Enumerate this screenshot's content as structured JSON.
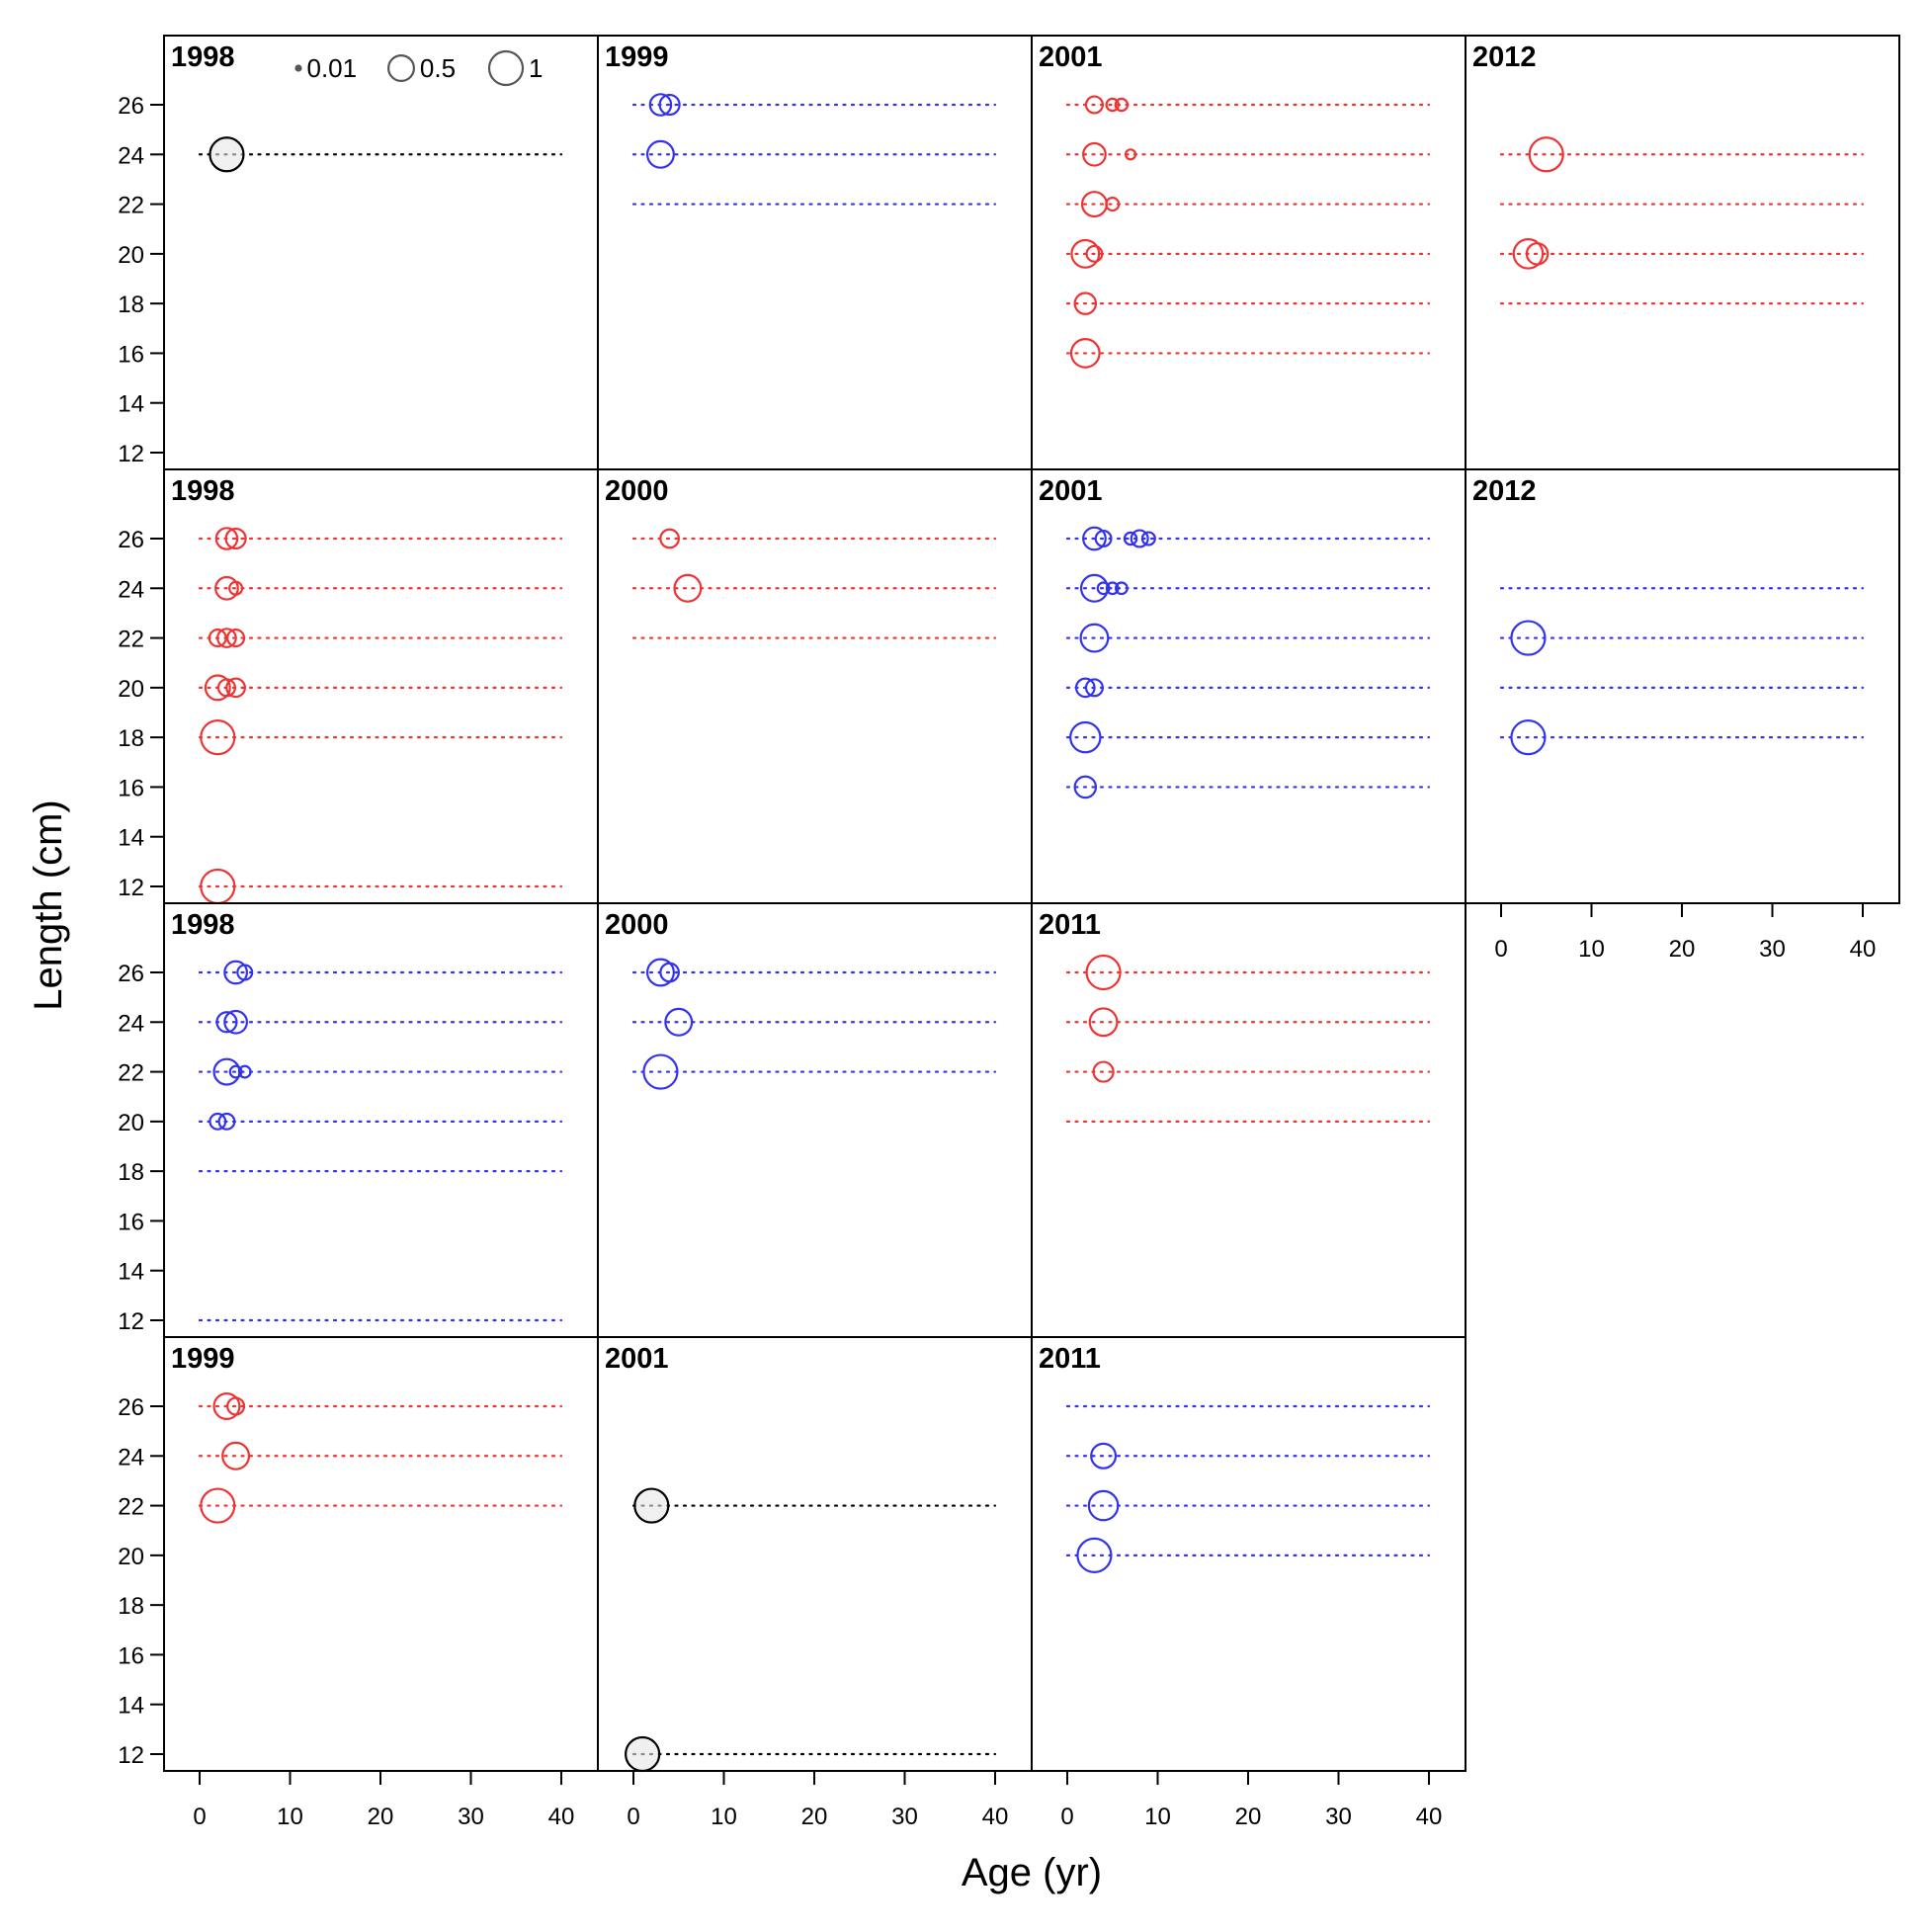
{
  "chart_data": {
    "type": "scatter",
    "subtype": "bubble-panels",
    "xlabel": "Age (yr)",
    "ylabel": "Length (cm)",
    "xlim": [
      0,
      40
    ],
    "ylim": [
      12,
      26
    ],
    "x_ticks": [
      0,
      10,
      20,
      30,
      40
    ],
    "y_ticks": [
      12,
      14,
      16,
      18,
      20,
      22,
      24,
      26
    ],
    "grid": false,
    "legend": {
      "placement": "top-left",
      "entries": [
        {
          "label": "0.01",
          "value": 0.01
        },
        {
          "label": "0.5",
          "value": 0.5
        },
        {
          "label": "1",
          "value": 1
        }
      ]
    },
    "colors": {
      "black": "#000000",
      "red": "#ee3333",
      "blue": "#3333ee",
      "black_fill": "#e6e6e6"
    },
    "panels": [
      {
        "title": "1998",
        "color": "black",
        "lines": [
          24
        ],
        "points": [
          [
            3,
            24,
            1
          ]
        ]
      },
      {
        "title": "1999",
        "color": "blue",
        "lines": [
          26,
          24,
          22
        ],
        "points": [
          [
            3,
            26,
            0.3
          ],
          [
            4,
            26,
            0.25
          ],
          [
            3,
            24,
            0.55
          ]
        ]
      },
      {
        "title": "2001",
        "color": "red",
        "lines": [
          26,
          24,
          22,
          20,
          18,
          16
        ],
        "points": [
          [
            3,
            26,
            0.15
          ],
          [
            5,
            26,
            0.05
          ],
          [
            6,
            26,
            0.05
          ],
          [
            3,
            24,
            0.35
          ],
          [
            7,
            24,
            0.02
          ],
          [
            3,
            22,
            0.45
          ],
          [
            5,
            22,
            0.06
          ],
          [
            2,
            20,
            0.6
          ],
          [
            3,
            20,
            0.12
          ],
          [
            2,
            18,
            0.3
          ],
          [
            2,
            16,
            0.65
          ]
        ]
      },
      {
        "title": "2012",
        "color": "red",
        "lines": [
          24,
          22,
          20,
          18
        ],
        "points": [
          [
            5,
            24,
            1
          ],
          [
            3,
            20,
            0.7
          ],
          [
            4,
            20,
            0.3
          ]
        ]
      },
      {
        "title": "1998",
        "color": "red",
        "lines": [
          26,
          24,
          22,
          20,
          18,
          12
        ],
        "points": [
          [
            3,
            26,
            0.3
          ],
          [
            4,
            26,
            0.25
          ],
          [
            3,
            24,
            0.35
          ],
          [
            4,
            24,
            0.06
          ],
          [
            2,
            22,
            0.15
          ],
          [
            3,
            22,
            0.2
          ],
          [
            4,
            22,
            0.15
          ],
          [
            2,
            20,
            0.45
          ],
          [
            3,
            20,
            0.15
          ],
          [
            4,
            20,
            0.2
          ],
          [
            2,
            18,
            1
          ],
          [
            2,
            12,
            1
          ]
        ]
      },
      {
        "title": "2000",
        "color": "red",
        "lines": [
          26,
          24,
          22
        ],
        "points": [
          [
            4,
            26,
            0.2
          ],
          [
            6,
            24,
            0.55
          ]
        ]
      },
      {
        "title": "2001",
        "color": "blue",
        "lines": [
          26,
          24,
          22,
          20,
          18,
          16
        ],
        "points": [
          [
            3,
            26,
            0.35
          ],
          [
            4,
            26,
            0.12
          ],
          [
            7,
            26,
            0.05
          ],
          [
            8,
            26,
            0.15
          ],
          [
            9,
            26,
            0.06
          ],
          [
            3,
            24,
            0.55
          ],
          [
            4,
            24,
            0.04
          ],
          [
            5,
            24,
            0.04
          ],
          [
            6,
            24,
            0.04
          ],
          [
            3,
            22,
            0.6
          ],
          [
            2,
            20,
            0.2
          ],
          [
            3,
            20,
            0.15
          ],
          [
            2,
            18,
            0.75
          ],
          [
            2,
            16,
            0.3
          ]
        ]
      },
      {
        "title": "2012",
        "color": "blue",
        "lines": [
          24,
          22,
          20,
          18
        ],
        "points": [
          [
            3,
            22,
            1
          ],
          [
            3,
            18,
            1
          ]
        ]
      },
      {
        "title": "1998",
        "color": "blue",
        "lines": [
          26,
          24,
          22,
          20,
          18,
          12
        ],
        "points": [
          [
            4,
            26,
            0.35
          ],
          [
            5,
            26,
            0.1
          ],
          [
            3,
            24,
            0.25
          ],
          [
            4,
            24,
            0.35
          ],
          [
            3,
            22,
            0.5
          ],
          [
            4,
            22,
            0.04
          ],
          [
            5,
            22,
            0.04
          ],
          [
            2,
            20,
            0.12
          ],
          [
            3,
            20,
            0.12
          ]
        ]
      },
      {
        "title": "2000",
        "color": "blue",
        "lines": [
          26,
          24,
          22
        ],
        "points": [
          [
            3,
            26,
            0.55
          ],
          [
            4,
            26,
            0.2
          ],
          [
            5,
            24,
            0.55
          ],
          [
            3,
            22,
            1
          ]
        ]
      },
      {
        "title": "2011",
        "color": "red",
        "lines": [
          26,
          24,
          22,
          20
        ],
        "points": [
          [
            4,
            26,
            1
          ],
          [
            4,
            24,
            0.6
          ],
          [
            4,
            22,
            0.25
          ]
        ]
      },
      {
        "title": "1999",
        "color": "red",
        "lines": [
          26,
          24,
          22
        ],
        "points": [
          [
            3,
            26,
            0.5
          ],
          [
            4,
            26,
            0.15
          ],
          [
            4,
            24,
            0.55
          ],
          [
            2,
            22,
            1
          ]
        ]
      },
      {
        "title": "2001",
        "color": "black",
        "lines": [
          22,
          12
        ],
        "points": [
          [
            2,
            22,
            1
          ],
          [
            1,
            12,
            1
          ]
        ]
      },
      {
        "title": "2011",
        "color": "blue",
        "lines": [
          26,
          24,
          22,
          20
        ],
        "points": [
          [
            4,
            24,
            0.45
          ],
          [
            4,
            22,
            0.7
          ],
          [
            3,
            20,
            1
          ]
        ]
      }
    ]
  }
}
